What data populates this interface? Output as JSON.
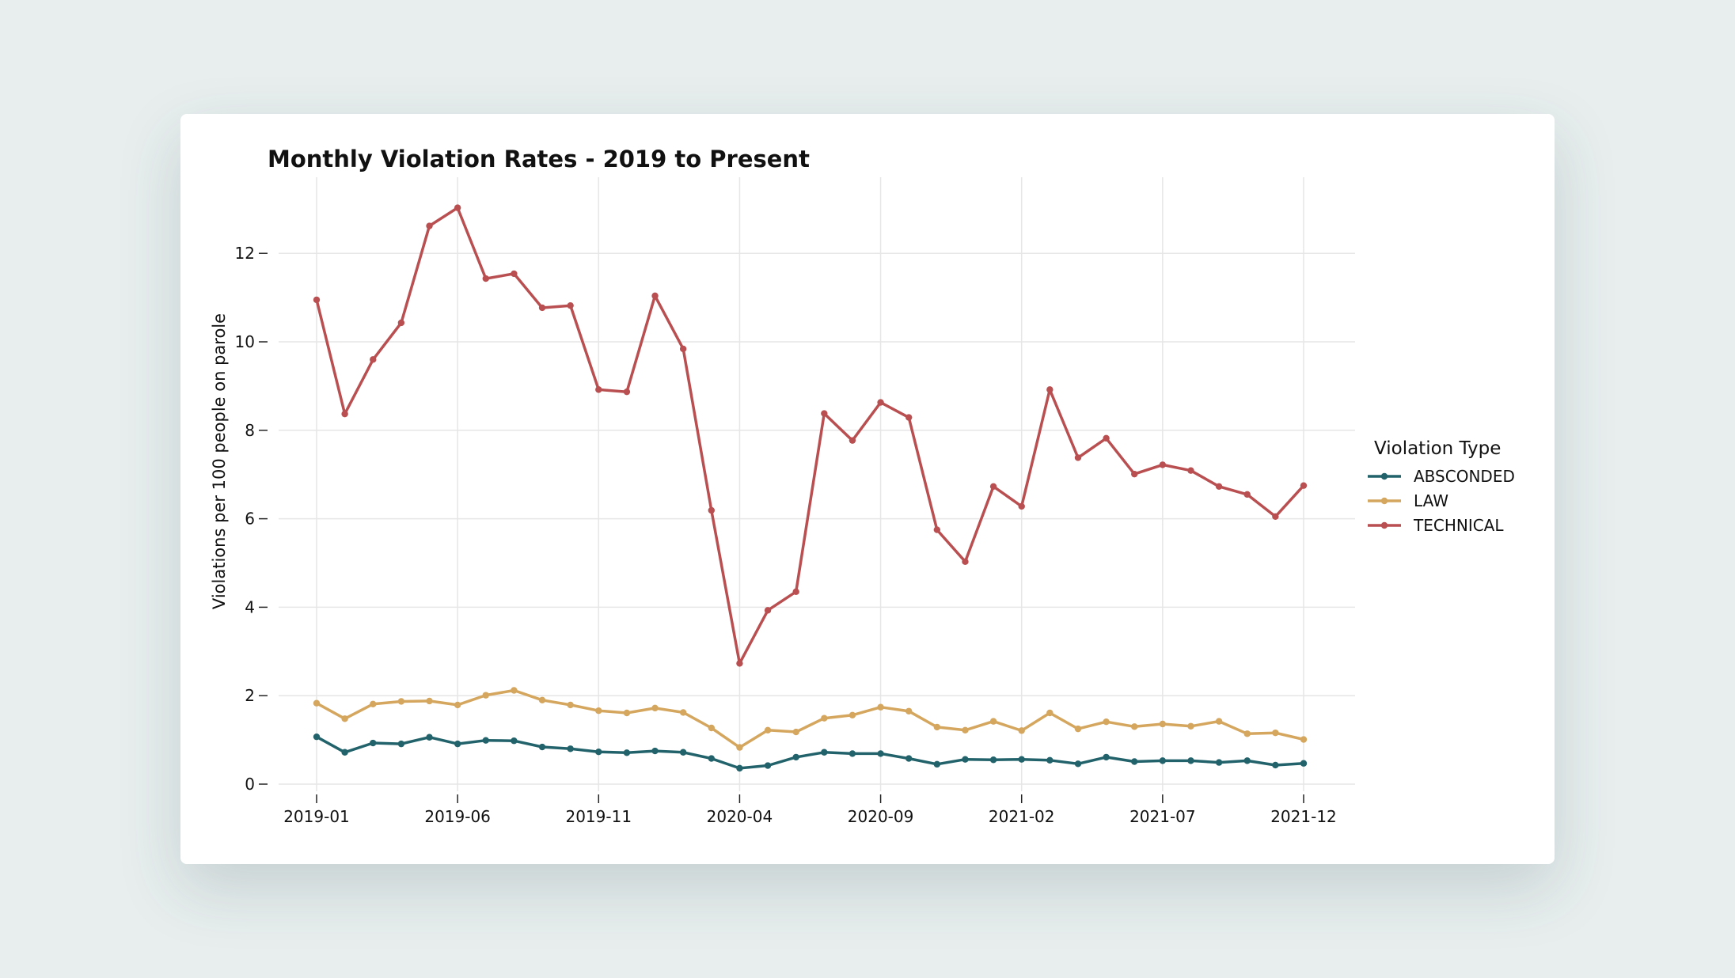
{
  "chart_data": {
    "type": "line",
    "title": "Monthly Violation Rates - 2019 to Present",
    "xlabel": "",
    "ylabel": "Violations per 100 people on parole",
    "ylim": [
      0,
      13.6
    ],
    "yticks": [
      0,
      2,
      4,
      6,
      8,
      10,
      12
    ],
    "xtick_labels": [
      "2019-01",
      "2019-06",
      "2019-11",
      "2020-04",
      "2020-09",
      "2021-02",
      "2021-07",
      "2021-12"
    ],
    "grid": true,
    "legend_title": "Violation Type",
    "legend_position": "right",
    "x": [
      "2019-01",
      "2019-02",
      "2019-03",
      "2019-04",
      "2019-05",
      "2019-06",
      "2019-07",
      "2019-08",
      "2019-09",
      "2019-10",
      "2019-11",
      "2019-12",
      "2020-01",
      "2020-02",
      "2020-03",
      "2020-04",
      "2020-05",
      "2020-06",
      "2020-07",
      "2020-08",
      "2020-09",
      "2020-10",
      "2020-11",
      "2020-12",
      "2021-01",
      "2021-02",
      "2021-03",
      "2021-04",
      "2021-05",
      "2021-06",
      "2021-07",
      "2021-08",
      "2021-09",
      "2021-10",
      "2021-11",
      "2021-12"
    ],
    "series": [
      {
        "name": "ABSCONDED",
        "color": "#22636b",
        "values": [
          1.07,
          0.72,
          0.93,
          0.91,
          1.06,
          0.91,
          0.99,
          0.98,
          0.84,
          0.8,
          0.73,
          0.71,
          0.75,
          0.72,
          0.58,
          0.36,
          0.42,
          0.61,
          0.72,
          0.69,
          0.69,
          0.58,
          0.45,
          0.56,
          0.55,
          0.56,
          0.54,
          0.46,
          0.61,
          0.51,
          0.53,
          0.53,
          0.49,
          0.53,
          0.43,
          0.47
        ]
      },
      {
        "name": "LAW",
        "color": "#d4a65e",
        "values": [
          1.83,
          1.48,
          1.81,
          1.87,
          1.88,
          1.79,
          2.01,
          2.12,
          1.9,
          1.79,
          1.66,
          1.61,
          1.72,
          1.62,
          1.27,
          0.83,
          1.22,
          1.18,
          1.49,
          1.56,
          1.74,
          1.65,
          1.29,
          1.22,
          1.42,
          1.21,
          1.61,
          1.25,
          1.41,
          1.3,
          1.36,
          1.31,
          1.42,
          1.14,
          1.16,
          1.01
        ]
      },
      {
        "name": "TECHNICAL",
        "color": "#b94f50",
        "values": [
          10.95,
          8.37,
          9.6,
          10.43,
          12.62,
          13.03,
          11.43,
          11.54,
          10.77,
          10.82,
          8.92,
          8.87,
          11.04,
          9.84,
          6.19,
          2.73,
          3.93,
          4.35,
          8.38,
          7.77,
          8.63,
          8.29,
          5.75,
          5.03,
          6.73,
          6.28,
          8.92,
          7.38,
          7.82,
          7.01,
          7.22,
          7.09,
          6.73,
          6.55,
          6.05,
          6.75
        ]
      }
    ]
  }
}
